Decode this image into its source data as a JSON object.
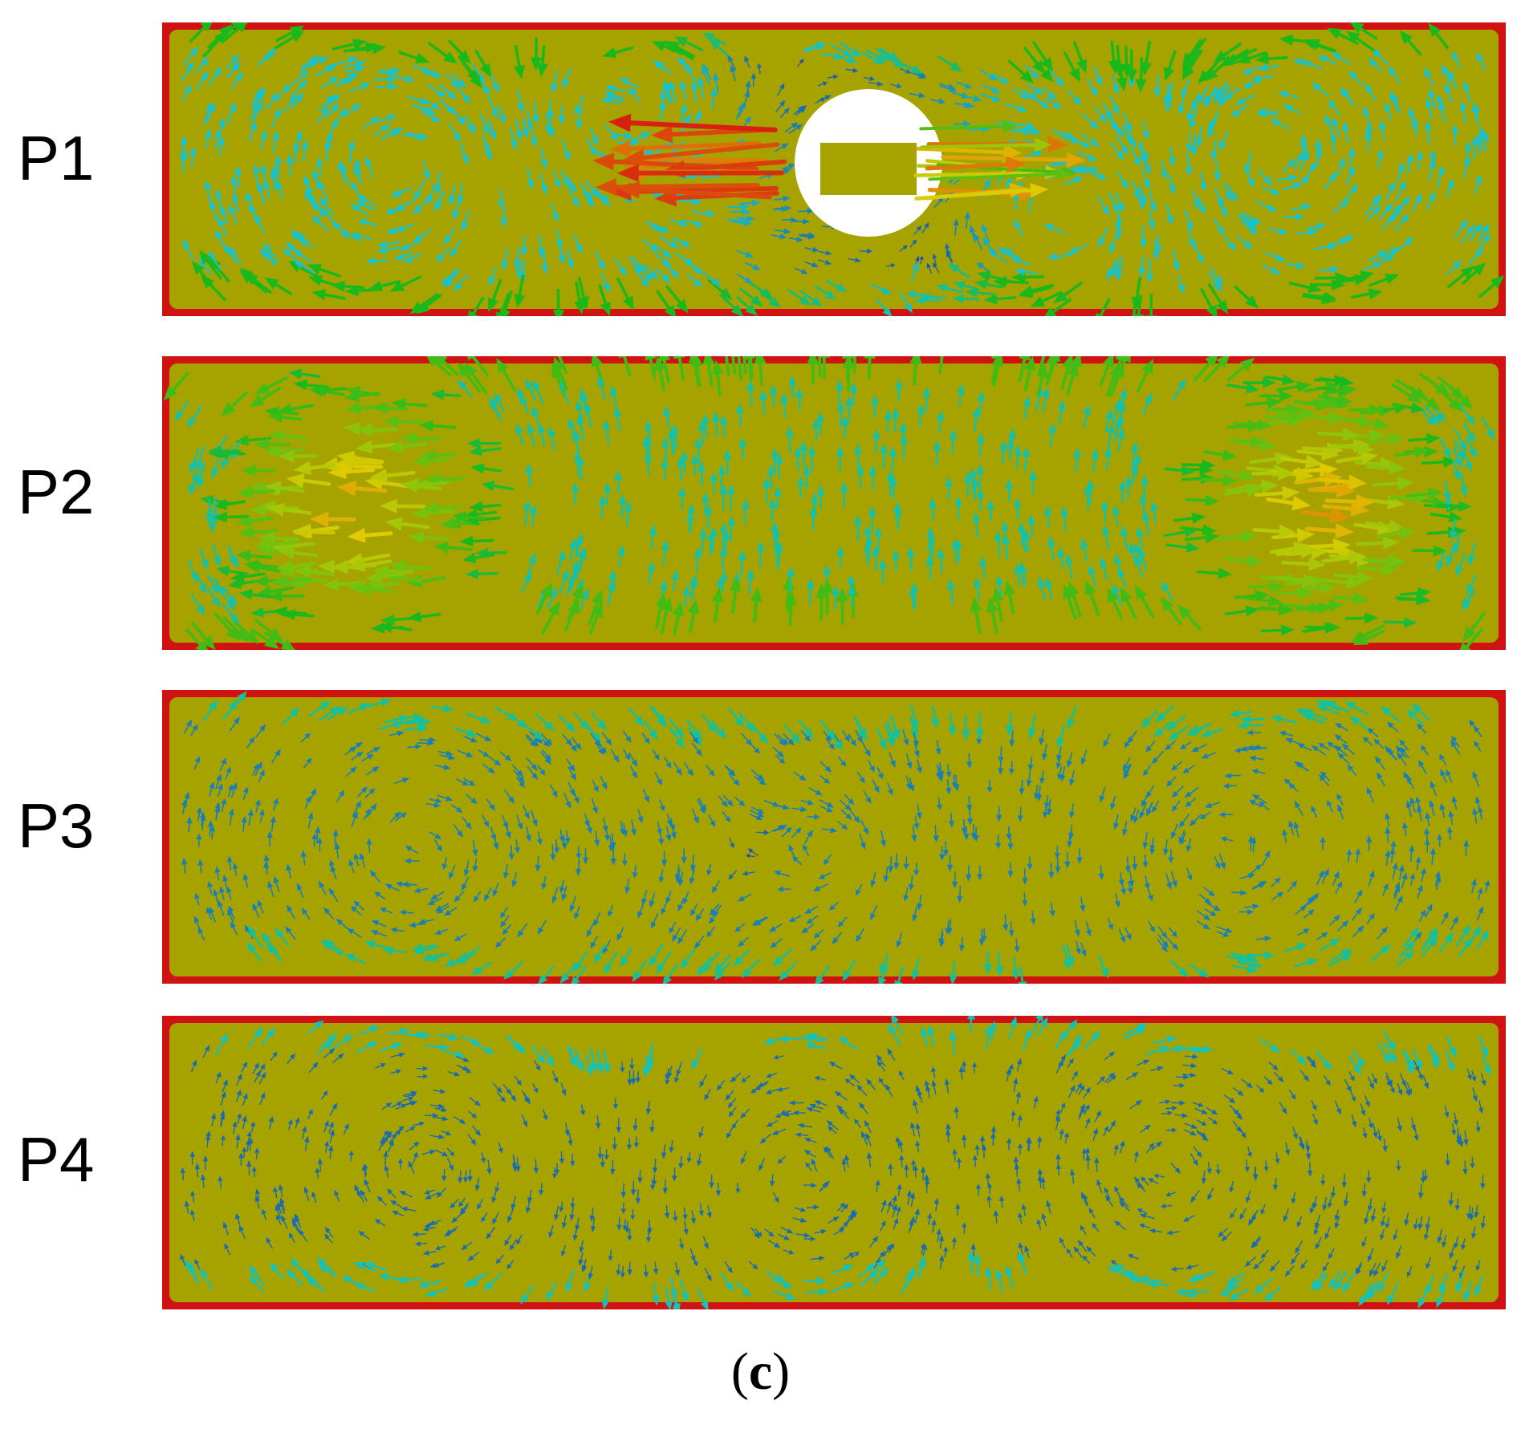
{
  "figure": {
    "caption_open": "(",
    "caption_letter": "c",
    "caption_close": ")",
    "colors": {
      "background": "#a6a300",
      "border": "#d11212",
      "low_velocity": "#1a44a8",
      "mid_velocity": "#18c2c8",
      "green_velocity": "#1ab81a",
      "yellow_velocity": "#e0cc00",
      "high_velocity": "#d81a10"
    },
    "arrow_glyph": "vector arrow"
  },
  "panels": [
    {
      "id": "P1",
      "label": "P1",
      "has_central_hole": true,
      "dominant_colors": [
        "#d81a10",
        "#1ab81a",
        "#18c2c8",
        "#1a44a8"
      ]
    },
    {
      "id": "P2",
      "label": "P2",
      "has_central_hole": false,
      "dominant_colors": [
        "#d46a10",
        "#1ab81a",
        "#18c2c8"
      ]
    },
    {
      "id": "P3",
      "label": "P3",
      "has_central_hole": false,
      "dominant_colors": [
        "#18a2c8",
        "#1a44a8",
        "#1ab81a"
      ]
    },
    {
      "id": "P4",
      "label": "P4",
      "has_central_hole": false,
      "dominant_colors": [
        "#1a44a8",
        "#18a2c8"
      ]
    }
  ]
}
